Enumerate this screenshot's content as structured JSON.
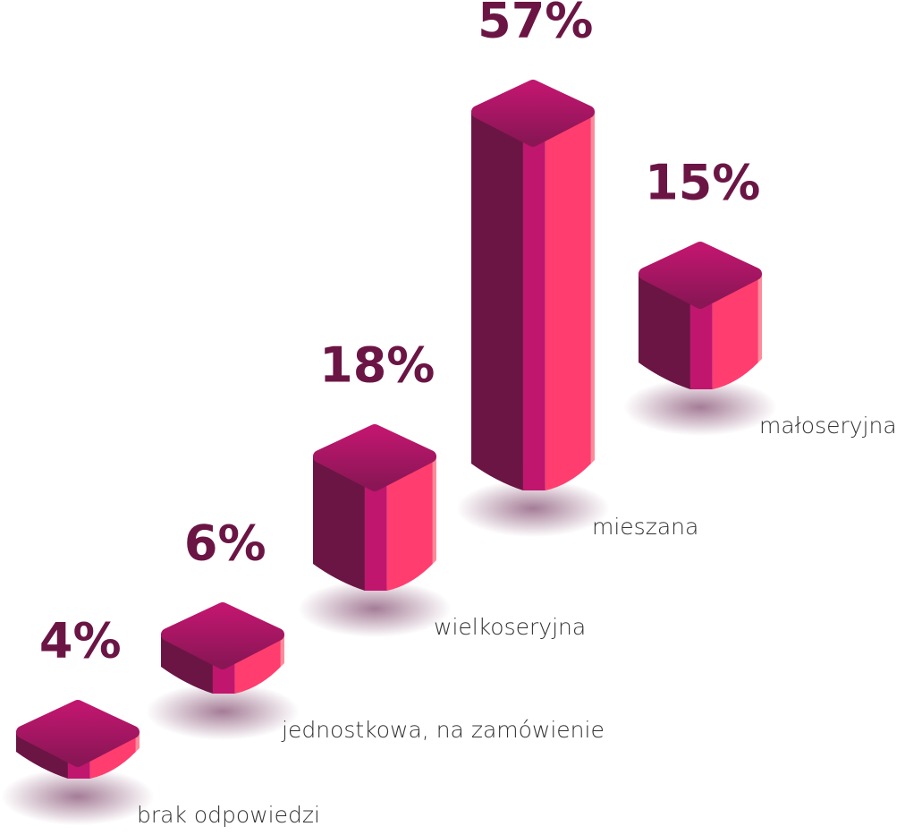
{
  "chart_data": {
    "type": "bar",
    "categories": [
      "brak odpowiedzi",
      "jednostkowa, na zamówienie",
      "wielkoseryjna",
      "mieszana",
      "małoseryjna"
    ],
    "values": [
      4,
      6,
      18,
      57,
      15
    ],
    "value_labels": [
      "4%",
      "6%",
      "18%",
      "57%",
      "15%"
    ],
    "color": "#c0166e"
  }
}
